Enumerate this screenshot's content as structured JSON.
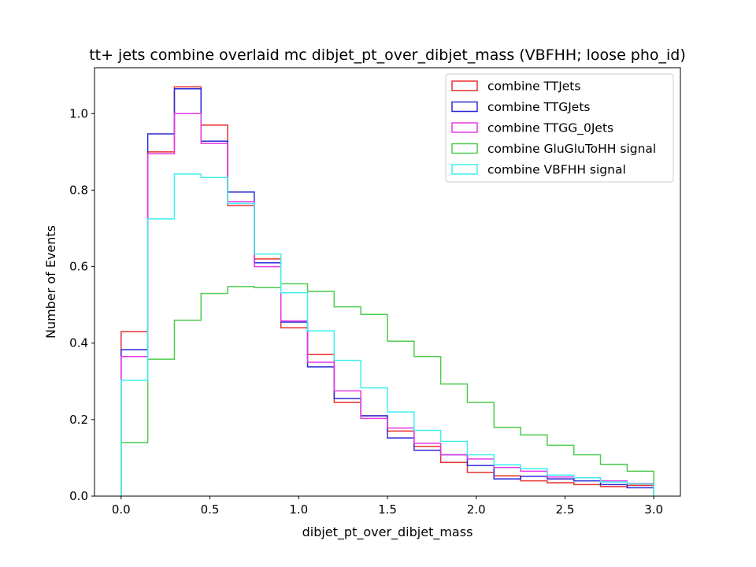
{
  "chart_data": {
    "type": "line",
    "title": "tt+ jets combine overlaid mc dibjet_pt_over_dibjet_mass (VBFHH; loose pho_id)",
    "xlabel": "dibjet_pt_over_dibjet_mass",
    "ylabel": "Number of Events",
    "xlim": [
      -0.15,
      3.15
    ],
    "ylim": [
      0,
      1.12
    ],
    "xticks": [
      "0.0",
      "0.5",
      "1.0",
      "1.5",
      "2.0",
      "2.5",
      "3.0"
    ],
    "yticks": [
      "0.0",
      "0.2",
      "0.4",
      "0.6",
      "0.8",
      "1.0"
    ],
    "grid": false,
    "legend_position": "top-right",
    "bin_edges": [
      0.0,
      0.15,
      0.3,
      0.45,
      0.6,
      0.75,
      0.9,
      1.05,
      1.2,
      1.35,
      1.5,
      1.65,
      1.8,
      1.95,
      2.1,
      2.25,
      2.4,
      2.55,
      2.7,
      2.85,
      3.0
    ],
    "series": [
      {
        "name": "combine TTJets",
        "color": "#e8302f",
        "values": [
          0.43,
          0.9,
          1.07,
          0.97,
          0.76,
          0.62,
          0.44,
          0.37,
          0.245,
          0.21,
          0.17,
          0.13,
          0.088,
          0.062,
          0.053,
          0.04,
          0.035,
          0.03,
          0.025,
          0.028
        ]
      },
      {
        "name": "combine TTGJets",
        "color": "#2a2ad8",
        "values": [
          0.383,
          0.947,
          1.065,
          0.928,
          0.795,
          0.61,
          0.455,
          0.338,
          0.255,
          0.21,
          0.152,
          0.12,
          0.108,
          0.08,
          0.045,
          0.052,
          0.045,
          0.04,
          0.03,
          0.022
        ]
      },
      {
        "name": "combine TTGG_0Jets",
        "color": "#e639e6",
        "values": [
          0.365,
          0.895,
          1.0,
          0.922,
          0.77,
          0.6,
          0.458,
          0.35,
          0.275,
          0.203,
          0.178,
          0.138,
          0.108,
          0.097,
          0.075,
          0.065,
          0.05,
          0.048,
          0.04,
          0.033
        ]
      },
      {
        "name": "combine GluGluToHH signal",
        "color": "#4dcc4d",
        "values": [
          0.14,
          0.358,
          0.46,
          0.53,
          0.548,
          0.545,
          0.555,
          0.535,
          0.495,
          0.475,
          0.405,
          0.365,
          0.293,
          0.245,
          0.18,
          0.16,
          0.133,
          0.108,
          0.083,
          0.065
        ]
      },
      {
        "name": "combine VBFHH signal",
        "color": "#3ff0f0",
        "values": [
          0.303,
          0.725,
          0.842,
          0.833,
          0.765,
          0.633,
          0.532,
          0.432,
          0.355,
          0.283,
          0.22,
          0.172,
          0.143,
          0.108,
          0.082,
          0.072,
          0.055,
          0.048,
          0.037,
          0.032
        ]
      }
    ]
  }
}
